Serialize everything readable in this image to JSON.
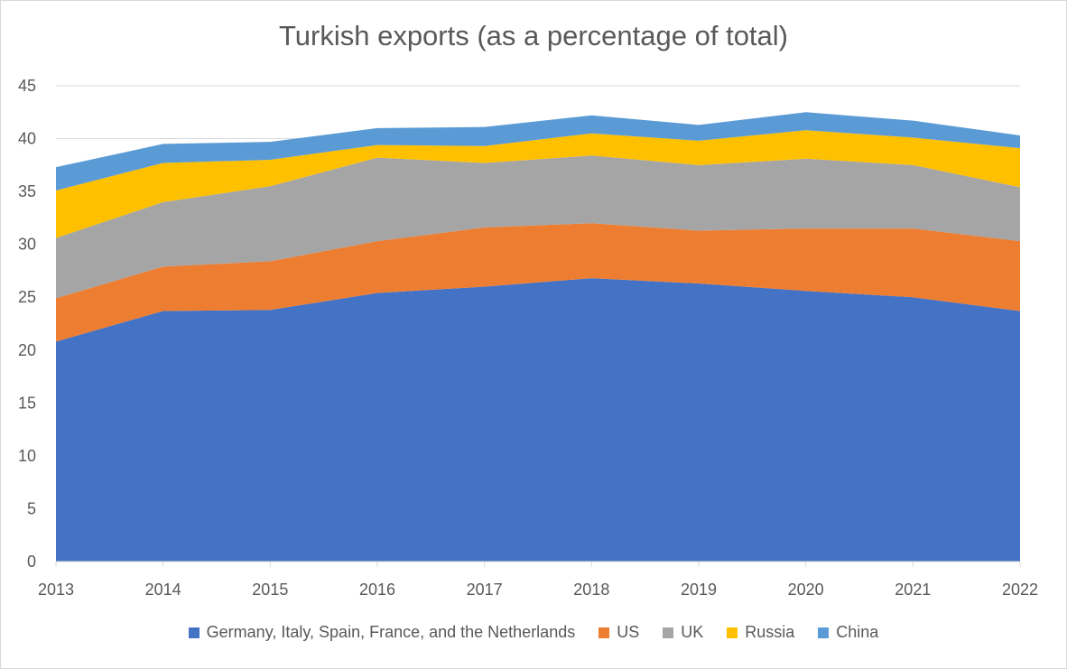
{
  "chart_data": {
    "type": "area",
    "stacked": true,
    "title": "Turkish exports (as a percentage of total)",
    "xlabel": "",
    "ylabel": "",
    "categories": [
      "2013",
      "2014",
      "2015",
      "2016",
      "2017",
      "2018",
      "2019",
      "2020",
      "2021",
      "2022"
    ],
    "ylim": [
      0,
      45
    ],
    "yticks": [
      0,
      5,
      10,
      15,
      20,
      25,
      30,
      35,
      40,
      45
    ],
    "grid": true,
    "legend": "bottom",
    "series": [
      {
        "name": "Germany, Italy, Spain, France, and the Netherlands",
        "color": "#4472C4",
        "values": [
          20.8,
          23.7,
          23.8,
          25.4,
          26.0,
          26.8,
          26.3,
          25.6,
          25.0,
          23.7
        ]
      },
      {
        "name": "US",
        "color": "#ED7D31",
        "values": [
          4.1,
          4.2,
          4.6,
          4.9,
          5.6,
          5.2,
          5.0,
          5.9,
          6.5,
          6.6
        ]
      },
      {
        "name": "UK",
        "color": "#A5A5A5",
        "values": [
          5.7,
          6.1,
          7.1,
          7.9,
          6.1,
          6.4,
          6.2,
          6.6,
          6.0,
          5.1
        ]
      },
      {
        "name": "Russia",
        "color": "#FFC000",
        "values": [
          4.5,
          3.7,
          2.5,
          1.2,
          1.6,
          2.1,
          2.3,
          2.7,
          2.6,
          3.7
        ]
      },
      {
        "name": "China",
        "color": "#5B9BD5",
        "values": [
          2.2,
          1.8,
          1.7,
          1.6,
          1.8,
          1.7,
          1.5,
          1.7,
          1.6,
          1.2
        ]
      }
    ]
  }
}
